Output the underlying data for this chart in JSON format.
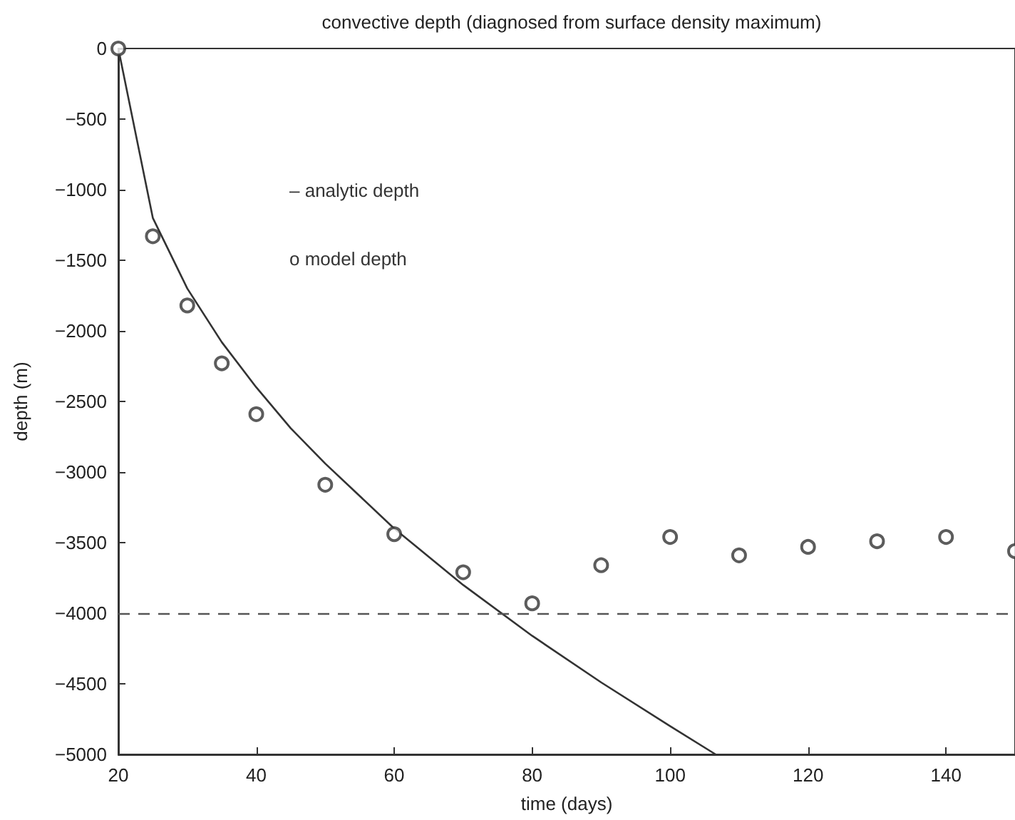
{
  "chart_data": {
    "type": "line",
    "title": "convective depth (diagnosed from surface density maximum)",
    "xlabel": "time (days)",
    "ylabel": "depth (m)",
    "annotations": [
      "– analytic depth",
      "o model depth"
    ],
    "xlim": [
      20,
      150
    ],
    "xticks": [
      20,
      40,
      60,
      80,
      100,
      120,
      140
    ],
    "ylim": [
      -5000,
      0
    ],
    "yticks": [
      -5000,
      -4500,
      -4000,
      -3500,
      -3000,
      -2500,
      -2000,
      -1500,
      -1000,
      -500,
      0
    ],
    "grid": false,
    "series": [
      {
        "color": "#333333",
        "line_style": "solid",
        "marker": "none",
        "x": [
          20,
          25,
          30,
          35,
          40,
          45,
          50,
          60,
          70,
          80,
          90,
          100,
          106.6
        ],
        "values": [
          0,
          -1200,
          -1700,
          -2080,
          -2400,
          -2690,
          -2940,
          -3400,
          -3800,
          -4160,
          -4490,
          -4800,
          -5000
        ]
      },
      {
        "type": "scatter",
        "color": "#333333",
        "marker": "circle",
        "x": [
          20,
          25,
          30,
          35,
          40,
          50,
          60,
          70,
          80,
          90,
          100,
          110,
          120,
          130,
          140,
          150
        ],
        "values": [
          0,
          -1330,
          -1820,
          -2230,
          -2590,
          -3090,
          -3440,
          -3710,
          -3930,
          -3660,
          -3460,
          -3590,
          -3530,
          -3490,
          -3460,
          -3560
        ]
      }
    ],
    "ref_lines": [
      {
        "axis": "y",
        "value": -4000,
        "color": "#555555",
        "line_style": "dashed"
      }
    ]
  }
}
